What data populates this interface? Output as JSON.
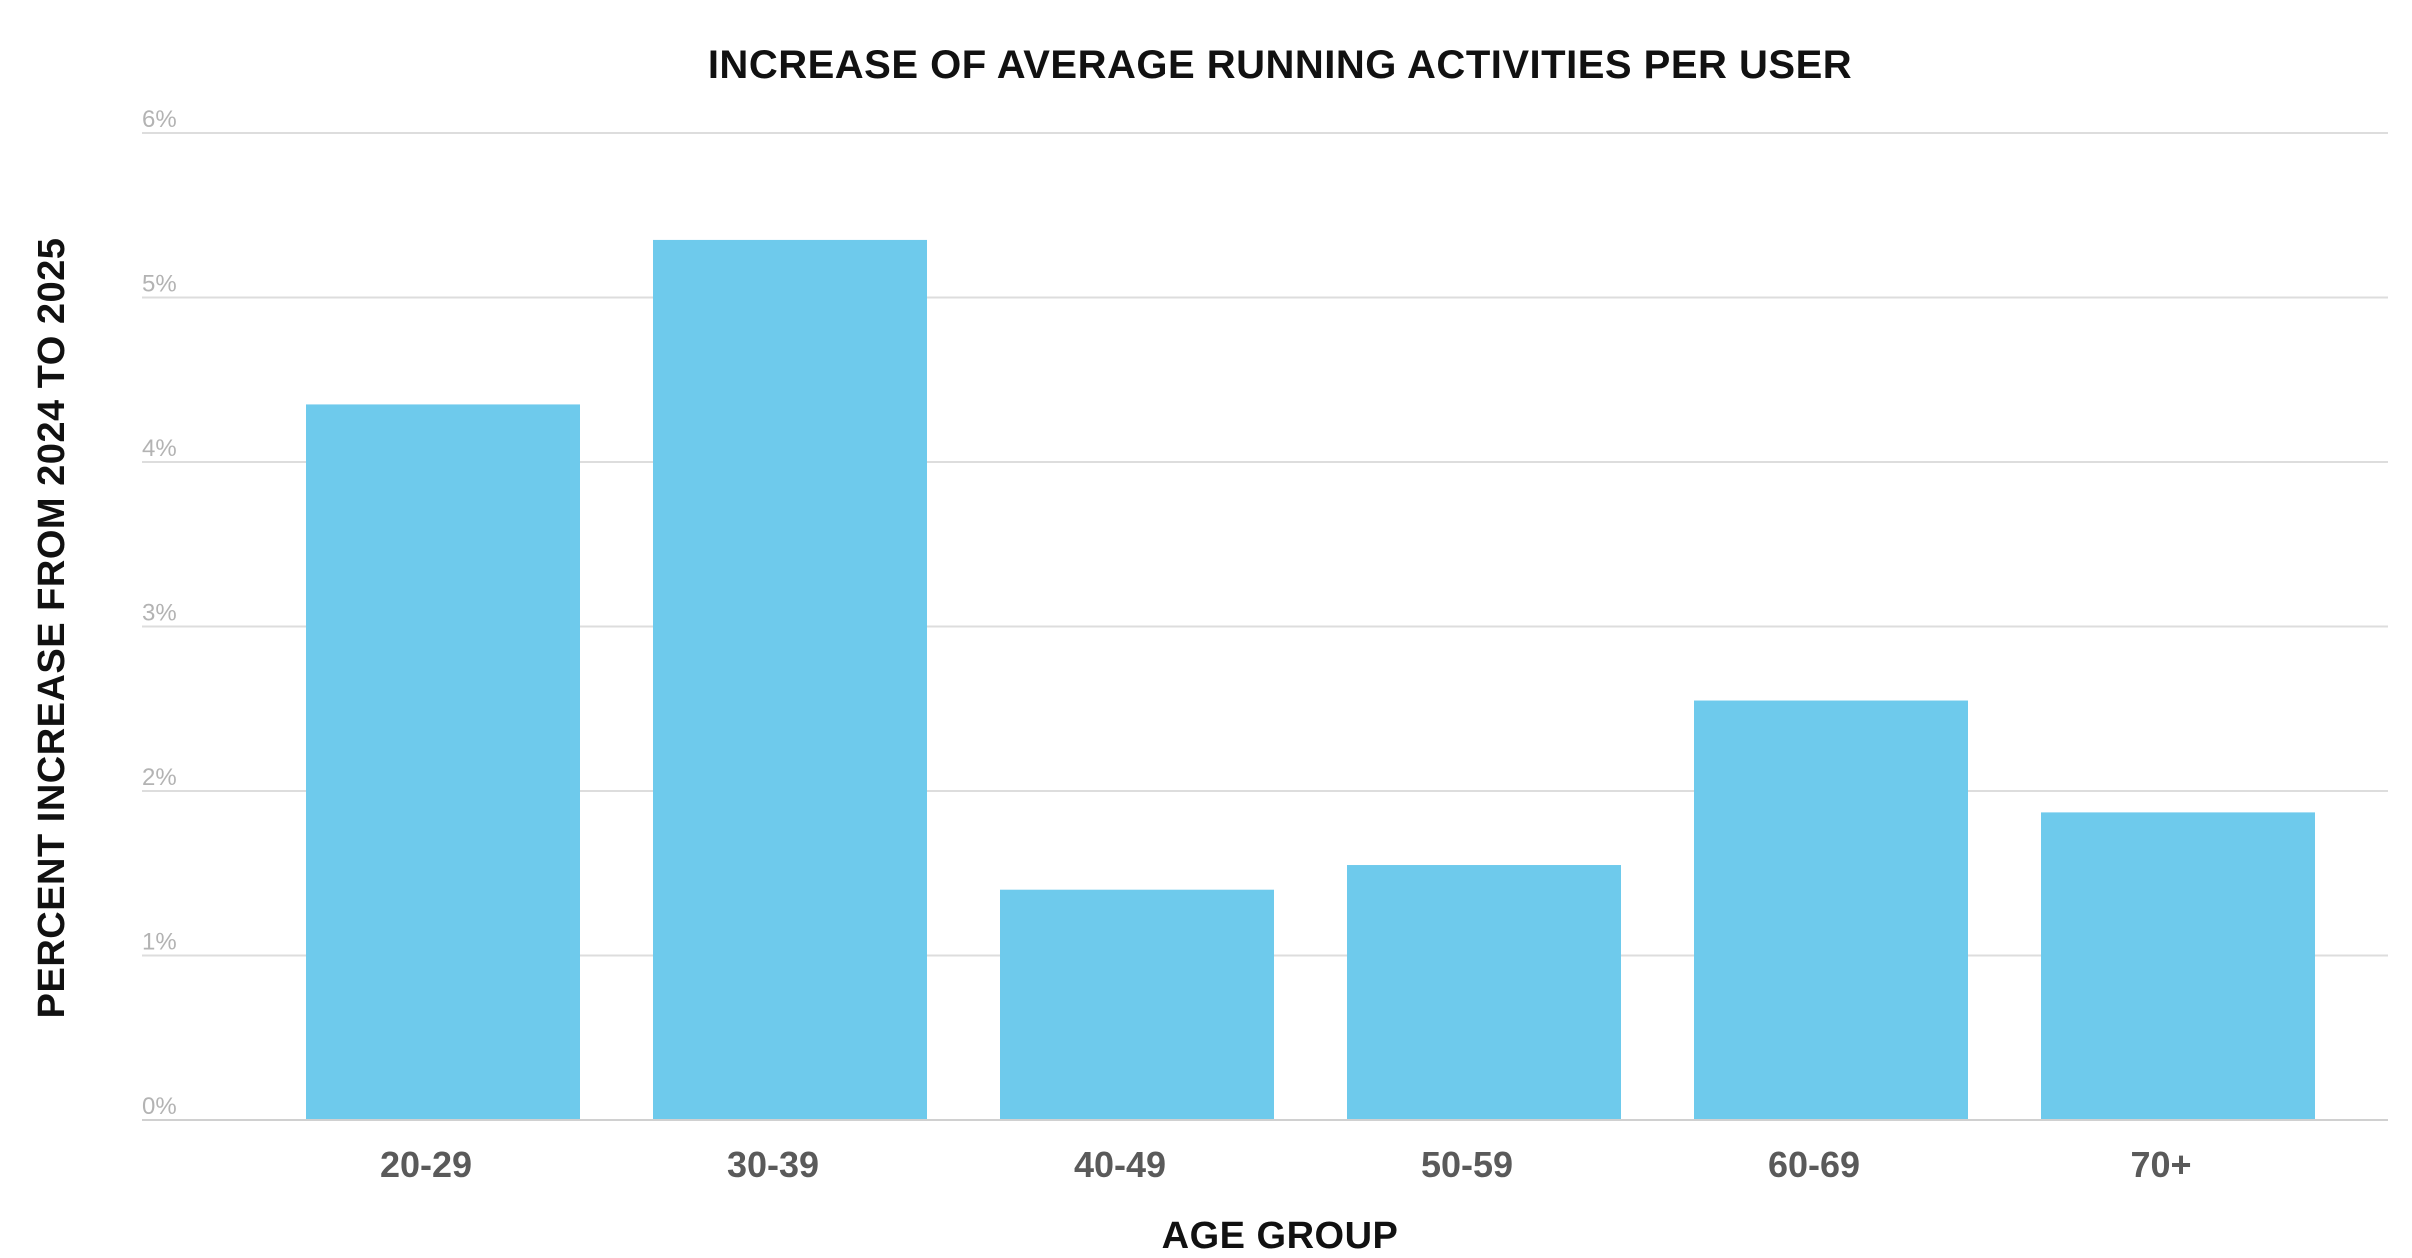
{
  "chart_data": {
    "type": "bar",
    "title": "INCREASE OF AVERAGE RUNNING ACTIVITIES PER USER",
    "xlabel": "AGE GROUP",
    "ylabel": "PERCENT INCREASE FROM 2024 TO 2025",
    "categories": [
      "20-29",
      "30-39",
      "40-49",
      "50-59",
      "60-69",
      "70+"
    ],
    "values": [
      4.35,
      5.35,
      1.4,
      1.55,
      2.55,
      1.87
    ],
    "ylim": [
      0,
      6
    ],
    "yticks": [
      0,
      1,
      2,
      3,
      4,
      5,
      6
    ],
    "ytick_labels": [
      "0%",
      "1%",
      "2%",
      "3%",
      "4%",
      "5%",
      "6%"
    ],
    "grid": true,
    "bar_color": "#6ecaec"
  }
}
